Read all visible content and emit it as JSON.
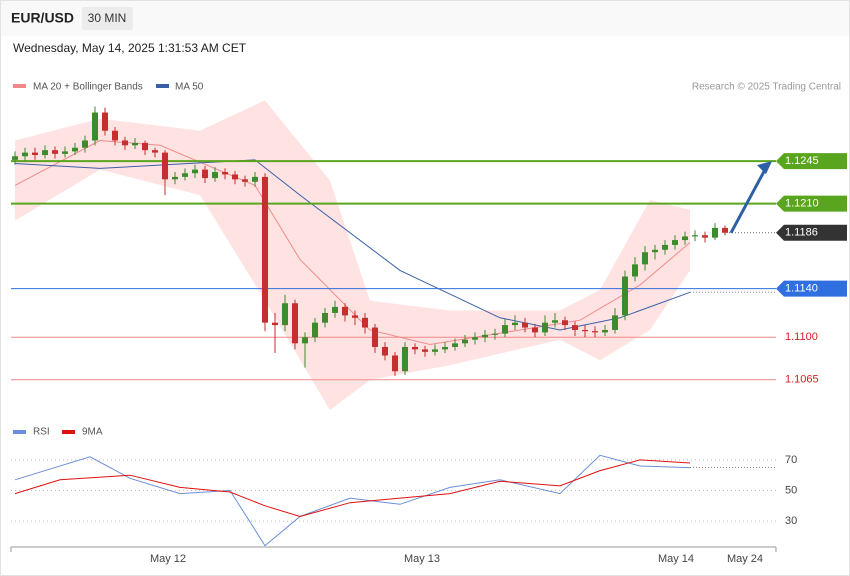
{
  "chart_data": [
    {
      "type": "candlestick",
      "title": "EUR/USD",
      "timeframe": "30 MIN",
      "subtitle": "Wednesday, May 14, 2025 1:31:53 AM CET",
      "credit": "Research © 2025 Trading Central",
      "up_color": "#3d8b2c",
      "down_color": "#c62f2f",
      "ylim": [
        1.1036,
        1.132
      ],
      "xlim": [
        -0.4,
        76.1
      ],
      "xticks": [
        {
          "value": 15.3,
          "label": "May 12"
        },
        {
          "value": 40.7,
          "label": "May 13"
        },
        {
          "value": 66.1,
          "label": "May 14"
        },
        {
          "value": 73,
          "label": "May 24"
        }
      ],
      "candles": [
        [
          1.1246,
          1.1253,
          1.1242,
          1.1249
        ],
        [
          1.1249,
          1.1256,
          1.1245,
          1.1252
        ],
        [
          1.1252,
          1.1256,
          1.1246,
          1.125
        ],
        [
          1.125,
          1.1258,
          1.1247,
          1.1254
        ],
        [
          1.1254,
          1.1257,
          1.1247,
          1.1251
        ],
        [
          1.1251,
          1.1257,
          1.1248,
          1.1253
        ],
        [
          1.1253,
          1.126,
          1.125,
          1.1256
        ],
        [
          1.1256,
          1.1266,
          1.1252,
          1.1262
        ],
        [
          1.1262,
          1.129,
          1.1258,
          1.1285
        ],
        [
          1.1285,
          1.1289,
          1.1266,
          1.127
        ],
        [
          1.127,
          1.1273,
          1.1258,
          1.1262
        ],
        [
          1.1262,
          1.1265,
          1.1254,
          1.1258
        ],
        [
          1.1258,
          1.1264,
          1.1255,
          1.126
        ],
        [
          1.126,
          1.1262,
          1.125,
          1.1254
        ],
        [
          1.1254,
          1.1256,
          1.1248,
          1.1252
        ],
        [
          1.1252,
          1.1254,
          1.1217,
          1.123
        ],
        [
          1.123,
          1.1236,
          1.1226,
          1.1232
        ],
        [
          1.1232,
          1.1239,
          1.1229,
          1.1235
        ],
        [
          1.1235,
          1.1242,
          1.1231,
          1.1238
        ],
        [
          1.1238,
          1.1241,
          1.1227,
          1.1231
        ],
        [
          1.1231,
          1.124,
          1.1228,
          1.1236
        ],
        [
          1.1236,
          1.1239,
          1.123,
          1.1234
        ],
        [
          1.1234,
          1.1237,
          1.1226,
          1.123
        ],
        [
          1.123,
          1.1233,
          1.1224,
          1.1228
        ],
        [
          1.1228,
          1.1236,
          1.1224,
          1.1232
        ],
        [
          1.1232,
          1.1235,
          1.1105,
          1.1112
        ],
        [
          1.1112,
          1.112,
          1.1087,
          1.111
        ],
        [
          1.111,
          1.1135,
          1.1105,
          1.1128
        ],
        [
          1.1128,
          1.1131,
          1.109,
          1.1095
        ],
        [
          1.1095,
          1.1104,
          1.1075,
          1.11
        ],
        [
          1.11,
          1.1116,
          1.1096,
          1.1112
        ],
        [
          1.1112,
          1.1124,
          1.1108,
          1.112
        ],
        [
          1.112,
          1.113,
          1.1116,
          1.1125
        ],
        [
          1.1125,
          1.1128,
          1.1113,
          1.1118
        ],
        [
          1.1118,
          1.1122,
          1.111,
          1.1116
        ],
        [
          1.1116,
          1.112,
          1.1103,
          1.1108
        ],
        [
          1.1108,
          1.1111,
          1.1087,
          1.1092
        ],
        [
          1.1092,
          1.1096,
          1.1081,
          1.1085
        ],
        [
          1.1085,
          1.1088,
          1.1068,
          1.1072
        ],
        [
          1.1072,
          1.1096,
          1.1069,
          1.1092
        ],
        [
          1.1092,
          1.1095,
          1.1086,
          1.109
        ],
        [
          1.109,
          1.1093,
          1.1084,
          1.1088
        ],
        [
          1.1088,
          1.1094,
          1.1085,
          1.109
        ],
        [
          1.109,
          1.1096,
          1.1087,
          1.1092
        ],
        [
          1.1092,
          1.1099,
          1.1089,
          1.1095
        ],
        [
          1.1095,
          1.1102,
          1.1092,
          1.1098
        ],
        [
          1.1098,
          1.1104,
          1.1094,
          1.11
        ],
        [
          1.11,
          1.1106,
          1.1096,
          1.1102
        ],
        [
          1.1102,
          1.1107,
          1.1098,
          1.1103
        ],
        [
          1.1103,
          1.1115,
          1.11,
          1.111
        ],
        [
          1.111,
          1.1118,
          1.1106,
          1.1112
        ],
        [
          1.1112,
          1.1116,
          1.1104,
          1.1108
        ],
        [
          1.1108,
          1.1111,
          1.11,
          1.1104
        ],
        [
          1.1104,
          1.1118,
          1.1101,
          1.1112
        ],
        [
          1.1112,
          1.112,
          1.1108,
          1.1114
        ],
        [
          1.1114,
          1.1117,
          1.1106,
          1.111
        ],
        [
          1.111,
          1.1113,
          1.1101,
          1.1106
        ],
        [
          1.1106,
          1.111,
          1.11,
          1.1105
        ],
        [
          1.1105,
          1.1109,
          1.11,
          1.1104
        ],
        [
          1.1104,
          1.111,
          1.1101,
          1.1106
        ],
        [
          1.1106,
          1.1124,
          1.1103,
          1.1118
        ],
        [
          1.1118,
          1.1155,
          1.1114,
          1.115
        ],
        [
          1.115,
          1.1166,
          1.1146,
          1.116
        ],
        [
          1.116,
          1.1175,
          1.1155,
          1.117
        ],
        [
          1.117,
          1.1176,
          1.1164,
          1.1172
        ],
        [
          1.1172,
          1.118,
          1.1168,
          1.1176
        ],
        [
          1.1176,
          1.1184,
          1.1172,
          1.118
        ],
        [
          1.118,
          1.1187,
          1.1176,
          1.1183
        ],
        [
          1.1183,
          1.1188,
          1.1179,
          1.1184
        ],
        [
          1.1184,
          1.1187,
          1.1178,
          1.1182
        ],
        [
          1.1182,
          1.1194,
          1.118,
          1.119
        ],
        [
          1.119,
          1.1192,
          1.1184,
          1.1186
        ]
      ],
      "bands": {
        "color": "#ffe3e3",
        "x": [
          0,
          8.5,
          18.5,
          25,
          31.5,
          35.5,
          43.5,
          54.5,
          58.5,
          63.5,
          67.5
        ],
        "upper": [
          1.1262,
          1.128,
          1.127,
          1.1295,
          1.1229,
          1.113,
          1.1122,
          1.1122,
          1.1139,
          1.1213,
          1.1205
        ],
        "lower": [
          1.1196,
          1.1238,
          1.1217,
          1.113,
          1.104,
          1.1065,
          1.1077,
          1.1098,
          1.1081,
          1.1106,
          1.1155
        ]
      },
      "ma20": {
        "name": "MA 20 + Bollinger Bands",
        "color": "#f08a8a",
        "x": [
          0,
          8.5,
          14.5,
          24,
          28.5,
          35.5,
          41.5,
          50.5,
          56.5,
          62.5,
          67.5
        ],
        "values": [
          1.1225,
          1.1262,
          1.1258,
          1.1225,
          1.1164,
          1.1106,
          1.1094,
          1.1106,
          1.1114,
          1.1143,
          1.1178
        ]
      },
      "ma50": {
        "name": "MA 50",
        "color": "#3a5fa8",
        "x": [
          0,
          8.5,
          24,
          28.5,
          38.5,
          48.5,
          54.5,
          60.5,
          67.5
        ],
        "values": [
          1.1243,
          1.1239,
          1.1246,
          1.1217,
          1.1155,
          1.1116,
          1.1106,
          1.1116,
          1.1137
        ]
      },
      "levels": [
        {
          "value": 1.1245,
          "label": "1.1245",
          "color": "#5aa51e",
          "style": "box"
        },
        {
          "value": 1.121,
          "label": "1.1210",
          "color": "#5aa51e",
          "style": "box"
        },
        {
          "value": 1.1186,
          "label": "1.1186",
          "color": "#333333",
          "style": "current"
        },
        {
          "value": 1.114,
          "label": "1.1140",
          "color": "#2f6fe0",
          "style": "box"
        },
        {
          "value": 1.11,
          "label": "1.1100",
          "color": "#f08a8a",
          "style": "text"
        },
        {
          "value": 1.1065,
          "label": "1.1065",
          "color": "#f08a8a",
          "style": "text"
        }
      ]
    },
    {
      "type": "line",
      "ylim": [
        0,
        100
      ],
      "yticks": [
        30,
        50,
        70
      ],
      "grid": true,
      "series": [
        {
          "name": "RSI",
          "color": "#6a8fd8",
          "x": [
            0,
            7.5,
            11.5,
            16.5,
            21.5,
            25,
            28.5,
            33.5,
            38.5,
            43.5,
            48.5,
            54.5,
            58.5,
            62.5,
            67.5
          ],
          "values": [
            57,
            72,
            58,
            48,
            50,
            14,
            33,
            45,
            41,
            52,
            57,
            48,
            73,
            66,
            65
          ]
        },
        {
          "name": "9MA",
          "color": "#e01010",
          "x": [
            0,
            4.5,
            11.5,
            16.5,
            21.5,
            25,
            28.5,
            33.5,
            38.5,
            43.5,
            48.5,
            54.5,
            58.5,
            62.5,
            67.5
          ],
          "values": [
            48,
            57,
            60,
            52,
            49,
            40,
            33,
            42,
            45,
            48,
            56,
            53,
            63,
            70,
            68
          ]
        }
      ]
    }
  ]
}
